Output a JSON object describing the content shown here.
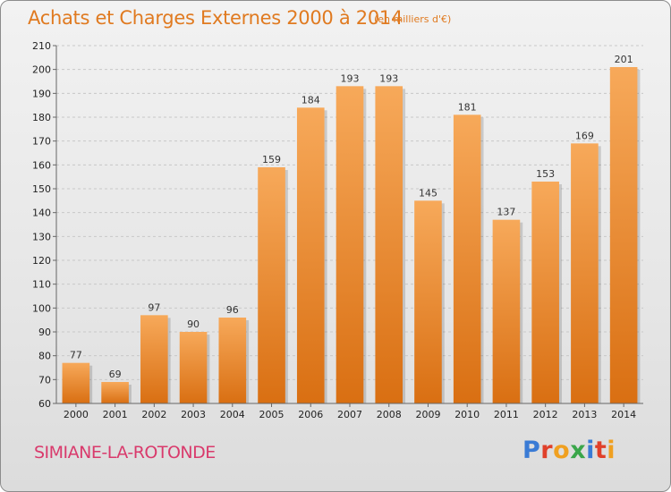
{
  "header": {
    "title": "Achats et Charges Externes 2000 à 2014",
    "subtitle": "(en milliers d'€)"
  },
  "footer": {
    "town": "SIMIANE-LA-ROTONDE",
    "brand": "Proxiti",
    "brand_letter_colors": [
      "#3a7bd5",
      "#e0402a",
      "#f0a020",
      "#3aa64a",
      "#3a7bd5",
      "#e0402a",
      "#f0a020"
    ]
  },
  "chart_data": {
    "type": "bar",
    "title": "Achats et Charges Externes 2000 à 2014",
    "subtitle": "(en milliers d'€)",
    "xlabel": "",
    "ylabel": "",
    "categories": [
      "2000",
      "2001",
      "2002",
      "2003",
      "2004",
      "2005",
      "2006",
      "2007",
      "2008",
      "2009",
      "2010",
      "2011",
      "2012",
      "2013",
      "2014"
    ],
    "values": [
      77,
      69,
      97,
      90,
      96,
      159,
      184,
      193,
      193,
      145,
      181,
      137,
      153,
      169,
      201
    ],
    "ylim": [
      60,
      210
    ],
    "yticks": [
      60,
      70,
      80,
      90,
      100,
      110,
      120,
      130,
      140,
      150,
      160,
      170,
      180,
      190,
      200,
      210
    ],
    "grid": true,
    "colors": {
      "bar_top": "#f7a95a",
      "bar_bottom": "#d96f12",
      "grid": "#c8c8c8",
      "axis": "#666666"
    }
  }
}
